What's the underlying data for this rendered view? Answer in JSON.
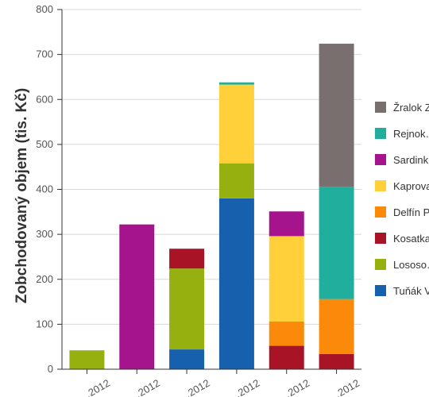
{
  "chart_data": {
    "type": "bar",
    "stacked": true,
    "ylabel": "Zobchodovaný objem (tis. Kč)",
    "xlabel": "",
    "ylim": [
      0,
      800
    ],
    "yticks": [
      0,
      100,
      200,
      300,
      400,
      500,
      600,
      700,
      800
    ],
    "grid": true,
    "legend_position": "right",
    "categories": [
      "…2012",
      "…2012",
      "…2012",
      "…2012",
      "…2012",
      "…2012"
    ],
    "series": [
      {
        "name": "Tuňák V…",
        "color": "#1660ad",
        "values": [
          0,
          0,
          44,
          380,
          0,
          0
        ]
      },
      {
        "name": "Lososo…",
        "color": "#95b00f",
        "values": [
          42,
          0,
          180,
          78,
          0,
          0
        ]
      },
      {
        "name": "Kosatka…",
        "color": "#a81425",
        "values": [
          0,
          0,
          44,
          0,
          52,
          34
        ]
      },
      {
        "name": "Delfín P…",
        "color": "#fc8a0a",
        "values": [
          0,
          0,
          0,
          0,
          54,
          122
        ]
      },
      {
        "name": "Kaprova…",
        "color": "#ffd03a",
        "values": [
          0,
          0,
          0,
          175,
          190,
          0
        ]
      },
      {
        "name": "Sardink…",
        "color": "#a5148d",
        "values": [
          0,
          322,
          0,
          0,
          55,
          0
        ]
      },
      {
        "name": "Rejnok…",
        "color": "#22ae9c",
        "values": [
          0,
          0,
          0,
          5,
          0,
          250
        ]
      },
      {
        "name": "Žralok Z…",
        "color": "#7a6f6f",
        "values": [
          0,
          0,
          0,
          0,
          0,
          318
        ]
      }
    ]
  }
}
